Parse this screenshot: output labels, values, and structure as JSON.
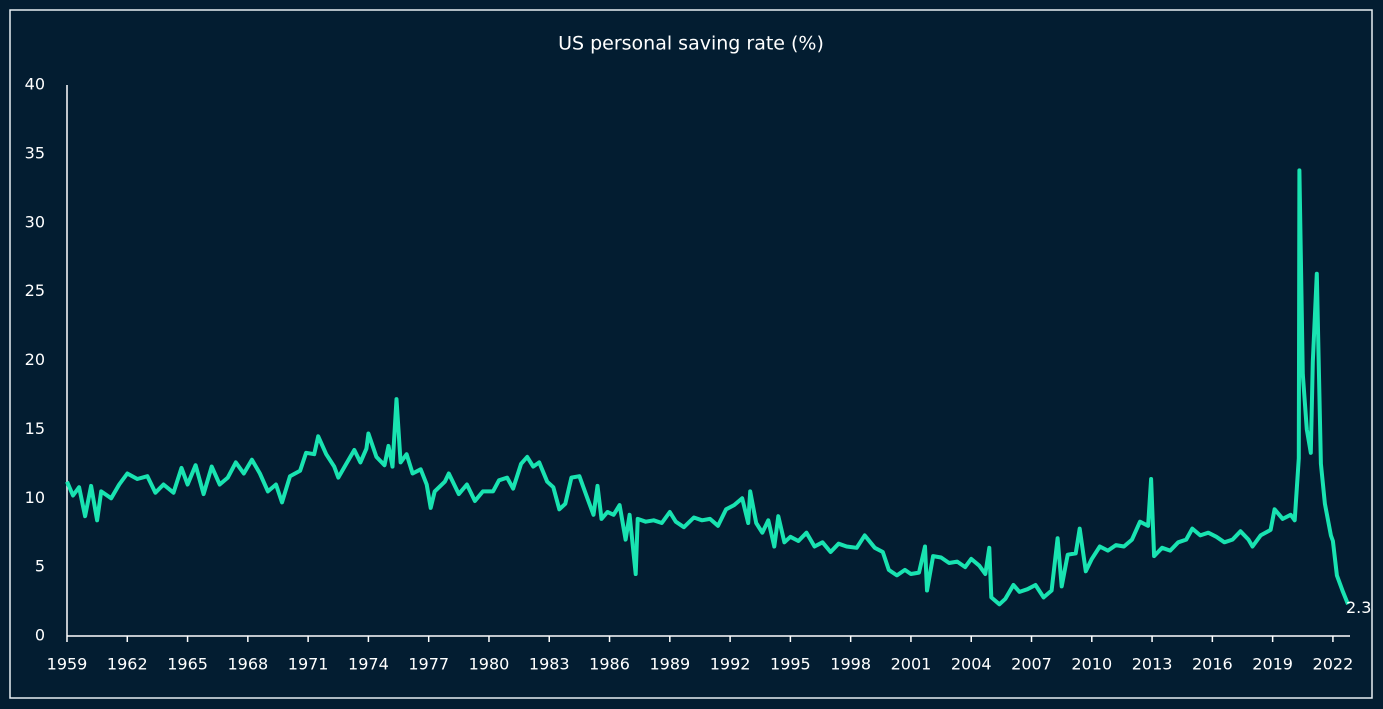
{
  "chart_data": {
    "type": "line",
    "title": "US personal saving rate (%)",
    "x": [
      1959.0,
      1959.3,
      1959.6,
      1959.9,
      1960.2,
      1960.5,
      1960.7,
      1961.2,
      1961.6,
      1962.0,
      1962.5,
      1963.0,
      1963.4,
      1963.8,
      1964.3,
      1964.7,
      1965.0,
      1965.4,
      1965.8,
      1966.2,
      1966.6,
      1967.0,
      1967.4,
      1967.8,
      1968.2,
      1968.6,
      1969.0,
      1969.4,
      1969.7,
      1970.1,
      1970.6,
      1970.9,
      1971.3,
      1971.5,
      1971.9,
      1972.3,
      1972.5,
      1972.9,
      1973.3,
      1973.6,
      1973.9,
      1974.0,
      1974.4,
      1974.8,
      1975.0,
      1975.2,
      1975.4,
      1975.6,
      1975.9,
      1976.2,
      1976.6,
      1976.9,
      1977.1,
      1977.3,
      1977.8,
      1978.0,
      1978.5,
      1978.9,
      1979.3,
      1979.7,
      1980.2,
      1980.5,
      1980.9,
      1981.2,
      1981.6,
      1981.9,
      1982.2,
      1982.5,
      1982.9,
      1983.2,
      1983.5,
      1983.8,
      1984.1,
      1984.5,
      1984.9,
      1985.2,
      1985.4,
      1985.6,
      1985.9,
      1986.2,
      1986.5,
      1986.8,
      1987.0,
      1987.3,
      1987.4,
      1987.8,
      1988.2,
      1988.6,
      1989.0,
      1989.3,
      1989.7,
      1990.2,
      1990.6,
      1991.0,
      1991.4,
      1991.8,
      1992.2,
      1992.6,
      1992.9,
      1993.0,
      1993.3,
      1993.6,
      1993.9,
      1994.2,
      1994.4,
      1994.7,
      1995.0,
      1995.4,
      1995.8,
      1996.2,
      1996.6,
      1997.0,
      1997.4,
      1997.8,
      1998.3,
      1998.7,
      1999.2,
      1999.6,
      1999.9,
      2000.3,
      2000.7,
      2001.0,
      2001.4,
      2001.7,
      2001.8,
      2002.1,
      2002.5,
      2002.9,
      2003.3,
      2003.7,
      2004.0,
      2004.4,
      2004.7,
      2004.9,
      2005.0,
      2005.4,
      2005.7,
      2006.1,
      2006.4,
      2006.8,
      2007.2,
      2007.6,
      2008.0,
      2008.3,
      2008.5,
      2008.8,
      2009.2,
      2009.4,
      2009.7,
      2010.0,
      2010.4,
      2010.8,
      2011.2,
      2011.6,
      2012.0,
      2012.4,
      2012.8,
      2012.95,
      2013.1,
      2013.5,
      2013.9,
      2014.3,
      2014.7,
      2015.0,
      2015.4,
      2015.8,
      2016.2,
      2016.6,
      2017.0,
      2017.4,
      2017.8,
      2018.0,
      2018.4,
      2018.9,
      2019.1,
      2019.5,
      2019.9,
      2020.1,
      2020.3,
      2020.33,
      2020.5,
      2020.7,
      2020.9,
      2021.0,
      2021.2,
      2021.4,
      2021.6,
      2021.9,
      2022.0,
      2022.2,
      2022.5,
      2022.75
    ],
    "series": [
      {
        "name": "US personal saving rate",
        "color": "#19e3b1",
        "values": [
          11.2,
          10.2,
          10.8,
          8.7,
          10.9,
          8.4,
          10.5,
          10.0,
          11.0,
          11.8,
          11.4,
          11.6,
          10.4,
          11.0,
          10.4,
          12.2,
          11.0,
          12.4,
          10.3,
          12.3,
          11.0,
          11.5,
          12.6,
          11.8,
          12.8,
          11.8,
          10.5,
          11.0,
          9.7,
          11.6,
          12.0,
          13.3,
          13.2,
          14.5,
          13.2,
          12.3,
          11.5,
          12.5,
          13.5,
          12.6,
          13.6,
          14.7,
          13.0,
          12.4,
          13.8,
          12.3,
          17.2,
          12.6,
          13.2,
          11.8,
          12.1,
          11.0,
          9.3,
          10.5,
          11.2,
          11.8,
          10.3,
          11.0,
          9.8,
          10.5,
          10.5,
          11.3,
          11.5,
          10.7,
          12.5,
          13.0,
          12.3,
          12.6,
          11.2,
          10.8,
          9.2,
          9.6,
          11.5,
          11.6,
          10.0,
          8.8,
          10.9,
          8.5,
          9.0,
          8.8,
          9.5,
          7.0,
          8.8,
          4.5,
          8.5,
          8.3,
          8.4,
          8.2,
          9.0,
          8.3,
          7.9,
          8.6,
          8.4,
          8.5,
          8.0,
          9.2,
          9.5,
          10.0,
          8.2,
          10.5,
          8.2,
          7.5,
          8.4,
          6.5,
          8.7,
          6.8,
          7.2,
          6.9,
          7.5,
          6.5,
          6.8,
          6.1,
          6.7,
          6.5,
          6.4,
          7.3,
          6.4,
          6.1,
          4.8,
          4.4,
          4.8,
          4.5,
          4.6,
          6.5,
          3.3,
          5.8,
          5.7,
          5.3,
          5.4,
          5.0,
          5.6,
          5.1,
          4.5,
          6.4,
          2.8,
          2.3,
          2.7,
          3.7,
          3.2,
          3.4,
          3.7,
          2.8,
          3.3,
          7.1,
          3.6,
          5.9,
          6.0,
          7.8,
          4.7,
          5.6,
          6.5,
          6.2,
          6.6,
          6.5,
          7.0,
          8.3,
          8.0,
          11.4,
          5.8,
          6.4,
          6.2,
          6.8,
          7.0,
          7.8,
          7.3,
          7.5,
          7.2,
          6.8,
          7.0,
          7.6,
          7.0,
          6.5,
          7.3,
          7.7,
          9.2,
          8.5,
          8.8,
          8.4,
          12.9,
          33.8,
          19.0,
          15.0,
          13.3,
          19.9,
          26.3,
          12.5,
          9.6,
          7.3,
          6.9,
          4.4,
          3.2,
          2.3
        ]
      }
    ],
    "xlim": [
      1959,
      2022.85
    ],
    "xticks": [
      1959,
      1962,
      1965,
      1968,
      1971,
      1974,
      1977,
      1980,
      1983,
      1986,
      1989,
      1992,
      1995,
      1998,
      2001,
      2004,
      2007,
      2010,
      2013,
      2016,
      2019,
      2022
    ],
    "ylim": [
      0,
      40
    ],
    "yticks": [
      0,
      5,
      10,
      15,
      20,
      25,
      30,
      35,
      40
    ],
    "grid": false
  }
}
